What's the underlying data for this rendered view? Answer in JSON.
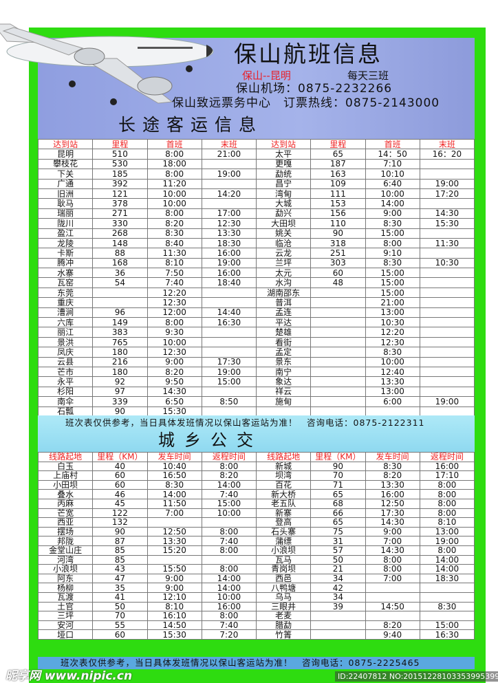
{
  "colors": {
    "frame": "#2edc10",
    "header_bg": "#a5b3ea",
    "header_text_red": "#e8202a",
    "notice_band": "#aee9f7"
  },
  "header": {
    "title": "保山航班信息",
    "route": "保山--昆明",
    "daily": "每天三班",
    "airport": "保山机场：0875-2232266",
    "ticket": "保山致远票务中心　订票热线：0875-2143000",
    "section_title": "长途客运信息"
  },
  "long_distance": {
    "columns": [
      "达到站",
      "里程",
      "首班",
      "末班",
      "达到站",
      "里程",
      "首班",
      "末班"
    ],
    "rows": [
      [
        "昆明",
        "510",
        "8:00",
        "21:00",
        "太平",
        "65",
        "14：50",
        "16：20"
      ],
      [
        "攀枝花",
        "530",
        "18:00",
        "",
        "更嘎",
        "187",
        "7:10",
        ""
      ],
      [
        "下关",
        "185",
        "8:00",
        "19:00",
        "勐统",
        "163",
        "10:10",
        ""
      ],
      [
        "广通",
        "392",
        "11:20",
        "",
        "昌宁",
        "109",
        "6:40",
        "19:00"
      ],
      [
        "旧洲",
        "121",
        "10:00",
        "14:20",
        "湾甸",
        "111",
        "10:00",
        "17:20"
      ],
      [
        "耿马",
        "378",
        "10:00",
        "",
        "大城",
        "153",
        "14:00",
        ""
      ],
      [
        "瑞丽",
        "271",
        "8:00",
        "17:00",
        "勐兴",
        "156",
        "9:00",
        "14:30"
      ],
      [
        "陇川",
        "330",
        "8:20",
        "12:30",
        "大田坝",
        "110",
        "8:30",
        "15:30"
      ],
      [
        "盈江",
        "268",
        "8:30",
        "13:30",
        "姚关",
        "90",
        "15:00",
        ""
      ],
      [
        "龙陵",
        "148",
        "8:40",
        "18:30",
        "临沧",
        "318",
        "8:00",
        "11:30"
      ],
      [
        "卡斯",
        "88",
        "11:30",
        "16:00",
        "云龙",
        "251",
        "9:10",
        ""
      ],
      [
        "腾冲",
        "168",
        "8:10",
        "19:00",
        "兰坪",
        "303",
        "8:30",
        "10:30"
      ],
      [
        "水寨",
        "36",
        "7:50",
        "16:00",
        "太元",
        "60",
        "15:00",
        ""
      ],
      [
        "瓦窑",
        "54",
        "7:40",
        "18:40",
        "水沟",
        "48",
        "15:00",
        ""
      ],
      [
        "东莞",
        "",
        "12:20",
        "",
        "湖南邵东",
        "",
        "15:00",
        ""
      ],
      [
        "重庆",
        "",
        "12:30",
        "",
        "普洱",
        "",
        "21:00",
        ""
      ],
      [
        "漕涧",
        "96",
        "12:00",
        "14:40",
        "孟连",
        "",
        "13:00",
        ""
      ],
      [
        "六库",
        "149",
        "8:00",
        "16:30",
        "平达",
        "",
        "10:30",
        ""
      ],
      [
        "丽江",
        "383",
        "9:30",
        "",
        "楚雄",
        "",
        "12:20",
        ""
      ],
      [
        "景洪",
        "765",
        "10:00",
        "",
        "看街",
        "",
        "12:30",
        ""
      ],
      [
        "凤庆",
        "180",
        "12:30",
        "",
        "孟定",
        "",
        "8:30",
        ""
      ],
      [
        "云县",
        "216",
        "9:00",
        "17:30",
        "景东",
        "",
        "10:00",
        ""
      ],
      [
        "芒市",
        "180",
        "8:20",
        "19:00",
        "南宁",
        "",
        "12:40",
        ""
      ],
      [
        "永平",
        "92",
        "9:50",
        "15:00",
        "象达",
        "",
        "13:30",
        ""
      ],
      [
        "杉阳",
        "97",
        "14:30",
        "",
        "祥云",
        "",
        "13:00",
        ""
      ],
      [
        "南伞",
        "339",
        "6:50",
        "8:50",
        "施甸",
        "",
        "6:00",
        "19:00"
      ],
      [
        "石瓢",
        "90",
        "15:30",
        "",
        "",
        "",
        "",
        ""
      ]
    ]
  },
  "notice1": "班次表仅供参考，当日具体发班情况以保山客运站为准！　咨询电话：0875-2122311",
  "bus_title": "城乡公交",
  "city_bus": {
    "columns": [
      "线路起地",
      "里程（KM）",
      "发车时间",
      "返程时间",
      "线路起地",
      "里程（KM）",
      "发车时间",
      "返程时间"
    ],
    "rows": [
      [
        "白玉",
        "40",
        "10:40",
        "8:00",
        "新城",
        "90",
        "8:30",
        "16:00"
      ],
      [
        "上庙村",
        "60",
        "16:50",
        "8:20",
        "坝湾",
        "70",
        "8:20",
        "17:10"
      ],
      [
        "小田坝",
        "60",
        "8:30",
        "14:00",
        "百花",
        "71",
        "13:30",
        "8:00"
      ],
      [
        "叠水",
        "46",
        "14:00",
        "7:40",
        "新大桥",
        "65",
        "16:00",
        "8:00"
      ],
      [
        "丙麻",
        "45",
        "11:50",
        "15:00",
        "老五队",
        "68",
        "12:50",
        "8:00"
      ],
      [
        "芒宽",
        "122",
        "7:00",
        "10:00",
        "新寨",
        "66",
        "17:30",
        "8:00"
      ],
      [
        "西亚",
        "132",
        "",
        "",
        "登高",
        "65",
        "14:30",
        "8:10"
      ],
      [
        "摆场",
        "90",
        "12:50",
        "8:00",
        "石头寨",
        "75",
        "9:00",
        "13:00"
      ],
      [
        "邦陇",
        "87",
        "13:30",
        "7:40",
        "蒲缥",
        "31",
        "7:00",
        "19:00"
      ],
      [
        "金堂山庄",
        "85",
        "15:20",
        "8:00",
        "小浪坝",
        "57",
        "14:30",
        "8:00"
      ],
      [
        "河湾",
        "85",
        "",
        "",
        "瓦马",
        "50",
        "8:00",
        "14:00"
      ],
      [
        "小浪坝",
        "43",
        "15:50",
        "8:00",
        "青岗坝",
        "21",
        "8:00",
        "14:00"
      ],
      [
        "阿东",
        "47",
        "9:00",
        "14:00",
        "西邑",
        "34",
        "7:00",
        "18:30"
      ],
      [
        "杨柳",
        "35",
        "9:00",
        "14:00",
        "八鸭塘",
        "42",
        "",
        ""
      ],
      [
        "瓦渡",
        "41",
        "12:10",
        "10:00",
        "乌马",
        "34",
        "",
        ""
      ],
      [
        "土官",
        "50",
        "8:10",
        "16:00",
        "三眼井",
        "39",
        "14:50",
        "8:30"
      ],
      [
        "三坪",
        "70",
        "16:10",
        "8:00",
        "老麦",
        "",
        "",
        ""
      ],
      [
        "安河",
        "55",
        "14:50",
        "7:40",
        "腊勐",
        "",
        "8:20",
        "15:00"
      ],
      [
        "垭口",
        "60",
        "15:30",
        "7:20",
        "竹箐",
        "",
        "9:40",
        "16:30"
      ]
    ]
  },
  "notice2": "班次表仅供参考，当日具体发班情况以保山客运站为准！　咨询电话：0875-2225465",
  "watermark": {
    "site": "昵享网 www.nipic.cn",
    "id": "ID:22407812 NO:20151228103353995399"
  }
}
